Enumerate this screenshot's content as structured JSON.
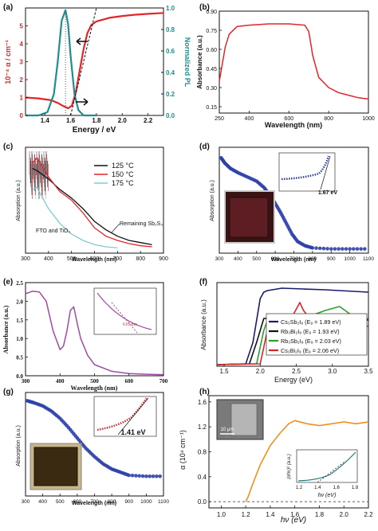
{
  "figure": {
    "panel_labels": [
      "(a)",
      "(b)",
      "(c)",
      "(d)",
      "(e)",
      "(f)",
      "(g)",
      "(h)"
    ]
  },
  "chart_data": [
    {
      "panel": "(a)",
      "type": "line",
      "xlabel": "Energy / eV",
      "ylabel": "10⁻⁴ α / cm⁻¹",
      "y2label": "Normalized PL",
      "xlim": [
        1.25,
        2.32
      ],
      "ylim": [
        0,
        6
      ],
      "y2lim": [
        0,
        1.0
      ],
      "xticks": [
        "1.4",
        "1.6",
        "1.8",
        "2.0",
        "2.2"
      ],
      "yticks": [
        "0",
        "1",
        "2",
        "3",
        "4",
        "5"
      ],
      "y2ticks": [
        "0.0",
        "0.2",
        "0.4",
        "0.6",
        "0.8",
        "1.0"
      ],
      "colors": {
        "absorption": "#e0262b",
        "pl": "#1f8e8c",
        "left_axis": "#d62728",
        "right_axis": "#1f8e8c"
      },
      "series": [
        {
          "axis": "left",
          "color": "#e0262b",
          "x": [
            1.25,
            1.35,
            1.45,
            1.5,
            1.55,
            1.58,
            1.61,
            1.64,
            1.67,
            1.7,
            1.73,
            1.76,
            1.8,
            1.9,
            2.0,
            2.1,
            2.2,
            2.32
          ],
          "y": [
            1.0,
            0.95,
            0.85,
            0.7,
            0.5,
            0.4,
            0.55,
            1.3,
            2.5,
            3.7,
            4.6,
            5.05,
            5.25,
            5.45,
            5.55,
            5.62,
            5.67,
            5.72
          ]
        },
        {
          "axis": "right",
          "color": "#1f8e8c",
          "x": [
            1.25,
            1.35,
            1.42,
            1.47,
            1.5,
            1.53,
            1.56,
            1.58,
            1.6,
            1.63,
            1.66,
            1.7,
            1.8
          ],
          "y": [
            0.0,
            0.0,
            0.03,
            0.2,
            0.5,
            0.88,
            0.98,
            0.85,
            0.55,
            0.2,
            0.05,
            0.0,
            0.0
          ]
        }
      ]
    },
    {
      "panel": "(b)",
      "type": "line",
      "xlabel": "Wavelength (nm)",
      "ylabel": "Absorbance (a.u.)",
      "xlim": [
        250,
        1000
      ],
      "ylim": [
        0.1,
        0.9
      ],
      "xticks": [
        "250",
        "400",
        "600",
        "800",
        "1000"
      ],
      "yticks": [
        "0.90",
        "0.75",
        "0.60",
        "0.45",
        "0.30",
        "0.15"
      ],
      "series": [
        {
          "color": "#e0262b",
          "x": [
            250,
            280,
            300,
            340,
            400,
            500,
            600,
            680,
            700,
            720,
            750,
            800,
            850,
            900,
            950,
            1000
          ],
          "y": [
            0.35,
            0.62,
            0.72,
            0.78,
            0.79,
            0.8,
            0.8,
            0.79,
            0.74,
            0.55,
            0.38,
            0.3,
            0.26,
            0.24,
            0.22,
            0.21
          ]
        }
      ]
    },
    {
      "panel": "(c)",
      "type": "line",
      "xlabel": "Wavelength (nm)",
      "ylabel": "Absorption (a.u.)",
      "xlim": [
        300,
        900
      ],
      "ylim": [
        0,
        1
      ],
      "xticks": [
        "300",
        "400",
        "500",
        "600",
        "700",
        "800",
        "900"
      ],
      "legend": [
        "125 °C",
        "150 °C",
        "175 °C"
      ],
      "annotations": [
        "Remaining Sb₂S₃",
        "FTO and TiO₂"
      ],
      "series": [
        {
          "name": "125 °C",
          "color": "#111111",
          "x": [
            330,
            350,
            400,
            450,
            500,
            550,
            600,
            650,
            700,
            750,
            800,
            850
          ],
          "y": [
            0.8,
            0.78,
            0.7,
            0.6,
            0.52,
            0.42,
            0.3,
            0.22,
            0.16,
            0.12,
            0.1,
            0.08
          ]
        },
        {
          "name": "150 °C",
          "color": "#e0262b",
          "x": [
            330,
            350,
            400,
            450,
            500,
            550,
            600,
            650,
            700,
            750,
            800,
            850
          ],
          "y": [
            0.85,
            0.9,
            0.72,
            0.58,
            0.5,
            0.38,
            0.24,
            0.16,
            0.12,
            0.09,
            0.07,
            0.06
          ]
        },
        {
          "name": "175 °C",
          "color": "#7fcbd0",
          "x": [
            330,
            350,
            400,
            450,
            500,
            550,
            600,
            650,
            700
          ],
          "y": [
            0.6,
            0.62,
            0.42,
            0.28,
            0.18,
            0.12,
            0.08,
            0.06,
            0.05
          ]
        }
      ]
    },
    {
      "panel": "(d)",
      "type": "scatter",
      "xlabel": "Wavelength (nm)",
      "ylabel": "Absorption (a.u.)",
      "xlim": [
        300,
        1100
      ],
      "ylim": [
        0,
        1
      ],
      "xticks": [
        "300",
        "400",
        "500",
        "600",
        "700",
        "800",
        "900",
        "1000",
        "1100"
      ],
      "inset_value": "1.67 eV",
      "series": [
        {
          "color": "#2c3fa8",
          "x": [
            310,
            330,
            360,
            400,
            450,
            500,
            540,
            570,
            600,
            630,
            660,
            690,
            720,
            760,
            800,
            900,
            1000,
            1100
          ],
          "y": [
            0.9,
            0.85,
            0.8,
            0.76,
            0.72,
            0.68,
            0.62,
            0.55,
            0.47,
            0.38,
            0.28,
            0.18,
            0.11,
            0.07,
            0.05,
            0.04,
            0.04,
            0.04
          ]
        }
      ]
    },
    {
      "panel": "(e)",
      "type": "line",
      "xlabel": "Wavelength (nm)",
      "ylabel": "Absorbance (a.u.)",
      "xlim": [
        300,
        700
      ],
      "ylim": [
        0.0,
        2.5
      ],
      "xticks": [
        "300",
        "400",
        "500",
        "600",
        "700"
      ],
      "yticks": [
        "0.0",
        "0.5",
        "1.0",
        "1.5",
        "2.0",
        "2.5"
      ],
      "inset_value": "610 nm",
      "series": [
        {
          "color": "#a04ca0",
          "x": [
            300,
            320,
            340,
            360,
            380,
            400,
            410,
            420,
            430,
            440,
            450,
            460,
            480,
            500,
            550,
            600,
            650,
            700
          ],
          "y": [
            2.2,
            2.27,
            2.25,
            2.0,
            1.2,
            0.7,
            0.8,
            1.2,
            1.75,
            1.85,
            1.4,
            1.0,
            0.55,
            0.3,
            0.12,
            0.06,
            0.04,
            0.03
          ]
        }
      ]
    },
    {
      "panel": "(f)",
      "type": "line",
      "xlabel": "Energy (eV)",
      "ylabel": "Absorbance (a.u.)",
      "xlim": [
        1.4,
        3.5
      ],
      "xticks": [
        "1.5",
        "2.0",
        "2.5",
        "3.0",
        "3.5"
      ],
      "legend": [
        "Cs₃Sb₂I₉ (E₉ = 1.89 eV)",
        "Rb₃Bi₂I₉ (E₉ = 1.93 eV)",
        "Rb₃Sb₂I₉ (E₉ = 2.03 eV)",
        "Cs₃Bi₂I₉ (E₉ = 2.06 eV)"
      ],
      "series": [
        {
          "name": "Cs₃Sb₂I₉ (E₉ = 1.89 eV)",
          "color": "#1a1a6e",
          "x": [
            1.4,
            1.8,
            1.9,
            2.0,
            2.05,
            2.1,
            2.3,
            2.6,
            2.9,
            3.1,
            3.5
          ],
          "y": [
            0.02,
            0.03,
            0.3,
            0.85,
            0.93,
            0.95,
            0.98,
            0.97,
            0.96,
            0.95,
            0.93
          ]
        },
        {
          "name": "Rb₃Bi₂I₉ (E₉ = 1.93 eV)",
          "color": "#111111",
          "x": [
            1.4,
            1.85,
            1.95,
            2.05,
            2.2,
            2.45,
            2.6,
            2.8,
            3.0,
            3.2,
            3.5
          ],
          "y": [
            0.02,
            0.03,
            0.3,
            0.6,
            0.6,
            0.65,
            0.57,
            0.6,
            0.55,
            0.6,
            0.58
          ]
        },
        {
          "name": "Rb₃Sb₂I₉ (E₉ = 2.03 eV)",
          "color": "#2aa02b",
          "x": [
            1.4,
            1.95,
            2.05,
            2.12,
            2.25,
            2.6,
            2.9,
            3.1,
            3.3,
            3.5
          ],
          "y": [
            0.02,
            0.03,
            0.45,
            0.62,
            0.6,
            0.6,
            0.7,
            0.75,
            0.62,
            0.6
          ]
        },
        {
          "name": "Cs₃Bi₂I₉ (E₉ = 2.06 eV)",
          "color": "#d62728",
          "x": [
            1.4,
            2.0,
            2.1,
            2.2,
            2.4,
            2.55,
            2.6,
            2.7,
            3.0,
            3.2,
            3.5
          ],
          "y": [
            0.02,
            0.03,
            0.45,
            0.55,
            0.55,
            0.8,
            0.7,
            0.58,
            0.5,
            0.55,
            0.5
          ]
        }
      ]
    },
    {
      "panel": "(g)",
      "type": "scatter",
      "xlabel": "Wavelength (nm)",
      "ylabel": "Absorption (a.u.)",
      "xlim": [
        300,
        1100
      ],
      "ylim": [
        0,
        1
      ],
      "xticks": [
        "300",
        "400",
        "500",
        "600",
        "700",
        "800",
        "900",
        "1000",
        "1100"
      ],
      "inset_value": "1.41 eV",
      "series": [
        {
          "color": "#2c3fa8",
          "x": [
            310,
            350,
            400,
            450,
            500,
            550,
            600,
            650,
            700,
            750,
            800,
            850,
            900,
            1000,
            1100
          ],
          "y": [
            0.92,
            0.9,
            0.87,
            0.82,
            0.75,
            0.66,
            0.56,
            0.46,
            0.38,
            0.31,
            0.26,
            0.23,
            0.2,
            0.19,
            0.19
          ]
        }
      ]
    },
    {
      "panel": "(h)",
      "type": "line",
      "xlabel": "hν  (eV)",
      "ylabel": "α  (10⁴ cm⁻¹)",
      "xlim": [
        0.9,
        2.2
      ],
      "ylim": [
        -0.1,
        1.7
      ],
      "xticks": [
        "1.0",
        "1.2",
        "1.4",
        "1.6",
        "1.8",
        "2.0",
        "2.2"
      ],
      "yticks": [
        "0.0",
        "0.4",
        "0.8",
        "1.2",
        "1.6"
      ],
      "inset": {
        "xlabel": "hν  (eV)",
        "ylabel": "(αhν)² (a.u.)",
        "xticks": [
          "1.2",
          "1.4",
          "1.6",
          "1.8"
        ]
      },
      "scalebar": "10 μm",
      "series": [
        {
          "color": "#f0901e",
          "x": [
            1.2,
            1.22,
            1.26,
            1.32,
            1.4,
            1.48,
            1.55,
            1.6,
            1.7,
            1.8,
            1.9,
            2.0,
            2.1,
            2.2
          ],
          "y": [
            0.0,
            0.08,
            0.3,
            0.6,
            0.9,
            1.1,
            1.25,
            1.3,
            1.25,
            1.22,
            1.25,
            1.28,
            1.25,
            1.28
          ]
        }
      ]
    }
  ]
}
